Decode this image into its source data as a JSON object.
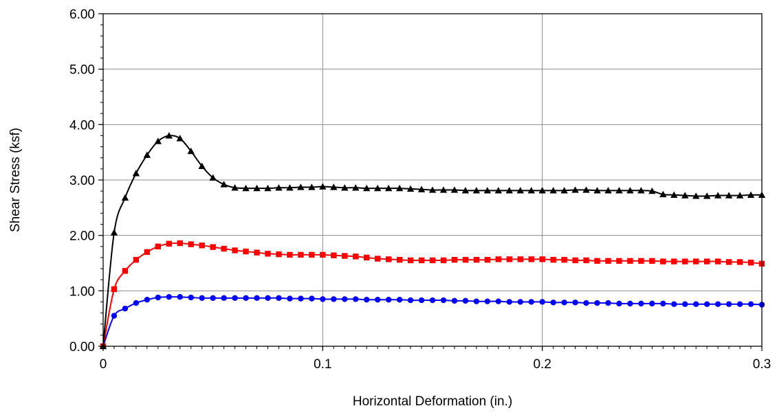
{
  "chart_data": {
    "type": "line",
    "title": "",
    "xlabel": "Horizontal Deformation (in.)",
    "ylabel": "Shear Stress (ksf)",
    "xlim": [
      0,
      0.3
    ],
    "ylim": [
      0,
      6
    ],
    "x_ticks": [
      0,
      0.1,
      0.2,
      0.3
    ],
    "x_tick_labels": [
      "0",
      "0.1",
      "0.2",
      "0.3"
    ],
    "y_ticks": [
      0,
      1,
      2,
      3,
      4,
      5,
      6
    ],
    "y_tick_labels": [
      "0.00",
      "1.00",
      "2.00",
      "3.00",
      "4.00",
      "5.00",
      "6.00"
    ],
    "grid": true,
    "legend": "none",
    "series": [
      {
        "color": "#0000ff",
        "marker": "circle",
        "x": [
          0,
          0.005,
          0.01,
          0.015,
          0.02,
          0.025,
          0.03,
          0.035,
          0.04,
          0.045,
          0.05,
          0.055,
          0.06,
          0.065,
          0.07,
          0.075,
          0.08,
          0.085,
          0.09,
          0.095,
          0.1,
          0.105,
          0.11,
          0.115,
          0.12,
          0.125,
          0.13,
          0.135,
          0.14,
          0.145,
          0.15,
          0.155,
          0.16,
          0.165,
          0.17,
          0.175,
          0.18,
          0.185,
          0.19,
          0.195,
          0.2,
          0.205,
          0.21,
          0.215,
          0.22,
          0.225,
          0.23,
          0.235,
          0.24,
          0.245,
          0.25,
          0.255,
          0.26,
          0.265,
          0.27,
          0.275,
          0.28,
          0.285,
          0.29,
          0.295,
          0.3
        ],
        "y": [
          0,
          0.55,
          0.68,
          0.78,
          0.84,
          0.88,
          0.89,
          0.89,
          0.88,
          0.87,
          0.87,
          0.87,
          0.87,
          0.87,
          0.87,
          0.87,
          0.87,
          0.86,
          0.86,
          0.86,
          0.85,
          0.85,
          0.85,
          0.85,
          0.84,
          0.84,
          0.84,
          0.84,
          0.83,
          0.83,
          0.83,
          0.83,
          0.82,
          0.82,
          0.81,
          0.81,
          0.81,
          0.8,
          0.8,
          0.8,
          0.8,
          0.79,
          0.79,
          0.79,
          0.78,
          0.78,
          0.78,
          0.77,
          0.77,
          0.77,
          0.77,
          0.77,
          0.76,
          0.76,
          0.76,
          0.76,
          0.76,
          0.76,
          0.76,
          0.76,
          0.75
        ]
      },
      {
        "color": "#ff0000",
        "marker": "square",
        "x": [
          0,
          0.005,
          0.01,
          0.015,
          0.02,
          0.025,
          0.03,
          0.035,
          0.04,
          0.045,
          0.05,
          0.055,
          0.06,
          0.065,
          0.07,
          0.075,
          0.08,
          0.085,
          0.09,
          0.095,
          0.1,
          0.105,
          0.11,
          0.115,
          0.12,
          0.125,
          0.13,
          0.135,
          0.14,
          0.145,
          0.15,
          0.155,
          0.16,
          0.165,
          0.17,
          0.175,
          0.18,
          0.185,
          0.19,
          0.195,
          0.2,
          0.205,
          0.21,
          0.215,
          0.22,
          0.225,
          0.23,
          0.235,
          0.24,
          0.245,
          0.25,
          0.255,
          0.26,
          0.265,
          0.27,
          0.275,
          0.28,
          0.285,
          0.29,
          0.295,
          0.3
        ],
        "y": [
          0,
          1.03,
          1.36,
          1.56,
          1.7,
          1.8,
          1.85,
          1.86,
          1.84,
          1.82,
          1.79,
          1.76,
          1.73,
          1.71,
          1.69,
          1.67,
          1.66,
          1.65,
          1.65,
          1.65,
          1.65,
          1.64,
          1.63,
          1.62,
          1.6,
          1.58,
          1.57,
          1.56,
          1.55,
          1.55,
          1.55,
          1.55,
          1.56,
          1.56,
          1.56,
          1.56,
          1.57,
          1.57,
          1.57,
          1.57,
          1.57,
          1.56,
          1.56,
          1.55,
          1.55,
          1.54,
          1.54,
          1.54,
          1.54,
          1.54,
          1.54,
          1.53,
          1.53,
          1.53,
          1.53,
          1.53,
          1.53,
          1.52,
          1.52,
          1.51,
          1.49
        ]
      },
      {
        "color": "#000000",
        "marker": "triangle",
        "x": [
          0,
          0.005,
          0.01,
          0.015,
          0.02,
          0.025,
          0.03,
          0.035,
          0.04,
          0.045,
          0.05,
          0.055,
          0.06,
          0.065,
          0.07,
          0.075,
          0.08,
          0.085,
          0.09,
          0.095,
          0.1,
          0.105,
          0.11,
          0.115,
          0.12,
          0.125,
          0.13,
          0.135,
          0.14,
          0.145,
          0.15,
          0.155,
          0.16,
          0.165,
          0.17,
          0.175,
          0.18,
          0.185,
          0.19,
          0.195,
          0.2,
          0.205,
          0.21,
          0.215,
          0.22,
          0.225,
          0.23,
          0.235,
          0.24,
          0.245,
          0.25,
          0.255,
          0.26,
          0.265,
          0.27,
          0.275,
          0.28,
          0.285,
          0.29,
          0.295,
          0.3
        ],
        "y": [
          0,
          2.05,
          2.68,
          3.12,
          3.45,
          3.7,
          3.8,
          3.75,
          3.52,
          3.25,
          3.04,
          2.92,
          2.86,
          2.85,
          2.85,
          2.85,
          2.86,
          2.86,
          2.87,
          2.87,
          2.88,
          2.87,
          2.86,
          2.86,
          2.85,
          2.85,
          2.85,
          2.85,
          2.84,
          2.83,
          2.82,
          2.82,
          2.82,
          2.81,
          2.81,
          2.81,
          2.81,
          2.81,
          2.81,
          2.81,
          2.81,
          2.81,
          2.81,
          2.82,
          2.82,
          2.81,
          2.81,
          2.81,
          2.81,
          2.81,
          2.8,
          2.74,
          2.73,
          2.72,
          2.71,
          2.71,
          2.72,
          2.72,
          2.72,
          2.73,
          2.73
        ]
      }
    ]
  }
}
